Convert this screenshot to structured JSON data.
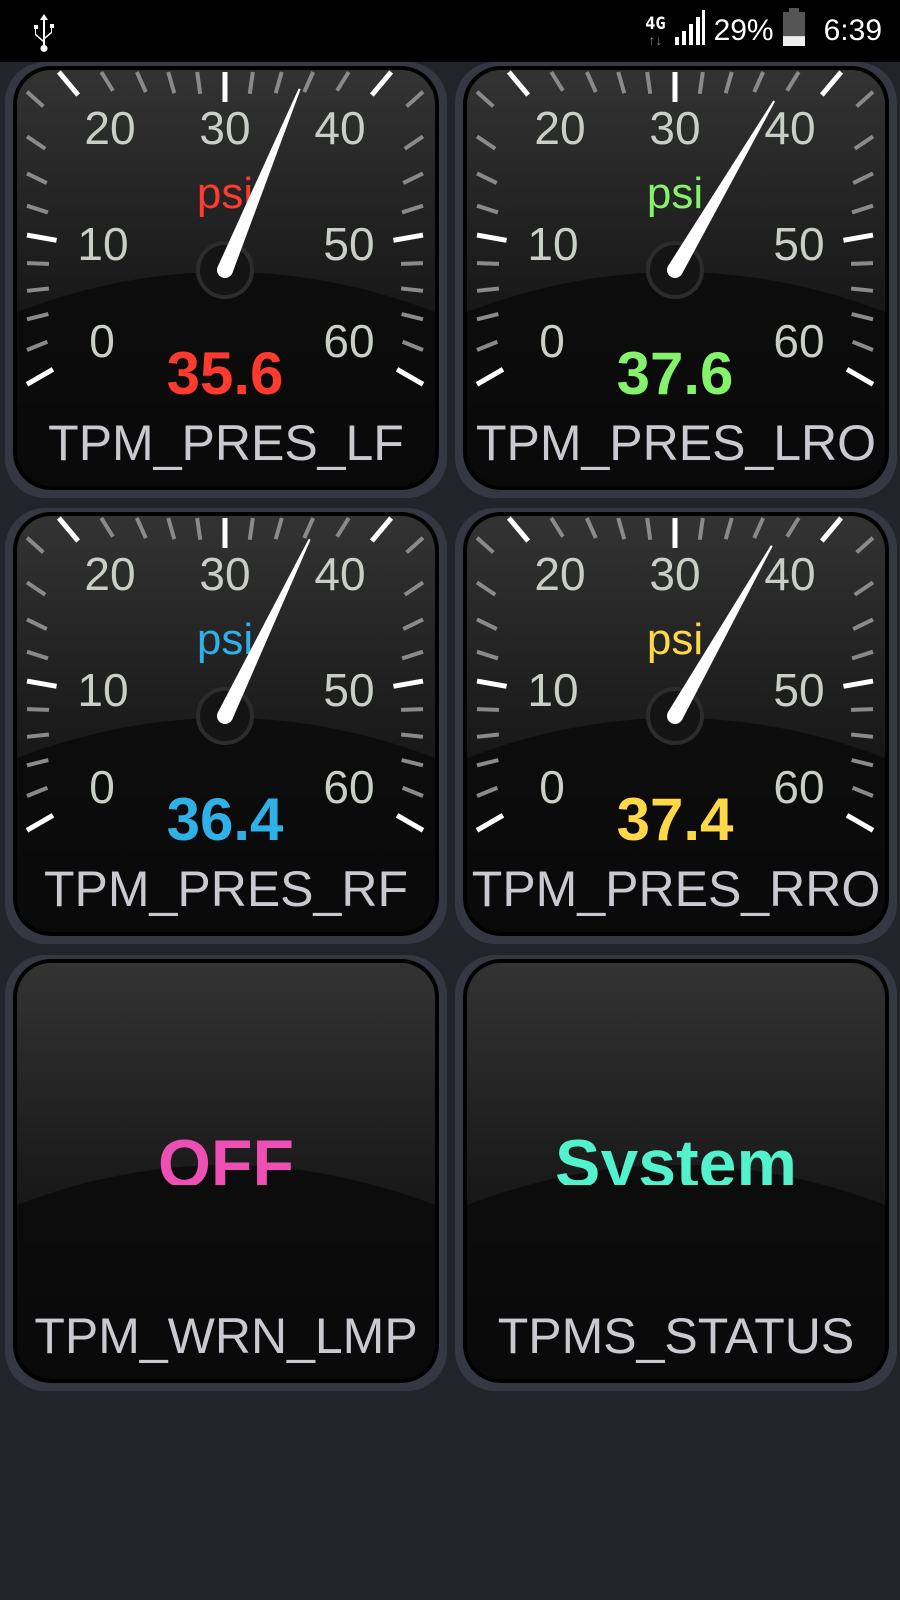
{
  "status_bar": {
    "usb_icon": "usb-icon",
    "network": "4G",
    "signal_icon": "signal-bars-icon",
    "battery_percent": "29%",
    "battery_level": 0.29,
    "time": "6:39"
  },
  "gauge_scale": {
    "min": 0,
    "max": 60,
    "major_step": 10,
    "minor_step": 2,
    "labels": [
      "0",
      "10",
      "20",
      "30",
      "40",
      "50",
      "60"
    ],
    "unit": "psi"
  },
  "gauges": [
    {
      "name": "TPM_PRES_LF",
      "value": 35.6,
      "value_text": "35.6",
      "unit": "psi",
      "color": "#ff3b30"
    },
    {
      "name": "TPM_PRES_LRO",
      "value": 37.6,
      "value_text": "37.6",
      "unit": "psi",
      "color": "#84f26a"
    },
    {
      "name": "TPM_PRES_RF",
      "value": 36.4,
      "value_text": "36.4",
      "unit": "psi",
      "color": "#2fb0e6"
    },
    {
      "name": "TPM_PRES_RRO",
      "value": 37.4,
      "value_text": "37.4",
      "unit": "psi",
      "color": "#ffd84a"
    }
  ],
  "status_tiles": [
    {
      "name": "TPM_WRN_LMP",
      "value_text": "OFF",
      "color": "#ee4fb4"
    },
    {
      "name": "TPMS_STATUS",
      "value_text": "System",
      "color": "#52f2cc"
    }
  ]
}
